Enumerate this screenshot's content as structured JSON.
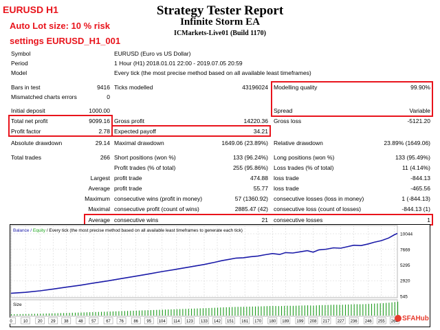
{
  "header": {
    "title": "Strategy Tester Report",
    "ea_name": "Infinite Storm EA",
    "server_build": "ICMarkets-Live01 (Build 1170)"
  },
  "overlay": {
    "symbol_tf": "EURUSD H1",
    "lot_size": "Auto Lot size: 10 % risk",
    "settings": "settings EURUSD_H1_001",
    "watermark": "SFAHub"
  },
  "info": [
    {
      "label": "Symbol",
      "value": "EURUSD (Euro vs US Dollar)"
    },
    {
      "label": "Period",
      "value": "1 Hour (H1) 2018.01.01 22:00 - 2019.07.05 20:59"
    },
    {
      "label": "Model",
      "value": "Every tick (the most precise method based on all available least timeframes)"
    }
  ],
  "stats": {
    "bars_in_test": {
      "label": "Bars in test",
      "value": "9416"
    },
    "ticks_modelled": {
      "label": "Ticks modelled",
      "value": "43196024"
    },
    "modelling_quality": {
      "label": "Modelling quality",
      "value": "99.90%"
    },
    "mismatched": {
      "label": "Mismatched charts errors",
      "value": "0"
    },
    "spread": {
      "label": "Spread",
      "value": "Variable"
    },
    "initial_deposit": {
      "label": "Initial deposit",
      "value": "1000.00"
    },
    "total_net_profit": {
      "label": "Total net profit",
      "value": "9099.16"
    },
    "gross_profit": {
      "label": "Gross profit",
      "value": "14220.36"
    },
    "gross_loss": {
      "label": "Gross loss",
      "value": "-5121.20"
    },
    "profit_factor": {
      "label": "Profit factor",
      "value": "2.78"
    },
    "expected_payoff": {
      "label": "Expected payoff",
      "value": "34.21"
    },
    "absolute_drawdown": {
      "label": "Absolute drawdown",
      "value": "29.14"
    },
    "maximal_drawdown": {
      "label": "Maximal drawdown",
      "value": "1649.06 (23.89%)"
    },
    "relative_drawdown": {
      "label": "Relative drawdown",
      "value": "23.89% (1649.06)"
    },
    "total_trades": {
      "label": "Total trades",
      "value": "266"
    },
    "short_positions": {
      "label": "Short positions (won %)",
      "value": "133 (96.24%)"
    },
    "long_positions": {
      "label": "Long positions (won %)",
      "value": "133 (95.49%)"
    },
    "profit_trades": {
      "label": "Profit trades (% of total)",
      "value": "255 (95.86%)"
    },
    "loss_trades": {
      "label": "Loss trades (% of total)",
      "value": "11 (4.14%)"
    },
    "largest": {
      "label": "Largest",
      "profit_label": "profit trade",
      "profit_value": "474.88",
      "loss_label": "loss trade",
      "loss_value": "-844.13"
    },
    "average": {
      "label": "Average",
      "profit_label": "profit trade",
      "profit_value": "55.77",
      "loss_label": "loss trade",
      "loss_value": "-465.56"
    },
    "maximum": {
      "label": "Maximum",
      "wins_label": "consecutive wins (profit in money)",
      "wins_value": "57 (1360.92)",
      "losses_label": "consecutive losses (loss in money)",
      "losses_value": "1 (-844.13)"
    },
    "maximal": {
      "label": "Maximal",
      "wins_label": "consecutive profit (count of wins)",
      "wins_value": "2885.47 (42)",
      "losses_label": "consecutive loss (count of losses)",
      "losses_value": "-844.13 (1)"
    },
    "average_consec": {
      "label": "Average",
      "wins_label": "consecutive wins",
      "wins_value": "21",
      "losses_label": "consecutive losses",
      "losses_value": "1"
    }
  },
  "chart_data": {
    "type": "line",
    "legend": {
      "balance": "Balance",
      "sep": " / ",
      "equity": "Equity",
      "desc": " / Every tick (the most precise method based on all available least timeframes to generate each tick)"
    },
    "size_label": "Size",
    "y_ticks": [
      "10044",
      "7669",
      "5295",
      "2920",
      "545"
    ],
    "ylim": [
      545,
      10044
    ],
    "x_ticks": [
      "0",
      "10",
      "20",
      "29",
      "38",
      "48",
      "57",
      "67",
      "76",
      "86",
      "95",
      "104",
      "114",
      "123",
      "133",
      "142",
      "151",
      "161",
      "170",
      "180",
      "189",
      "199",
      "208",
      "217",
      "227",
      "236",
      "246",
      "255",
      "264"
    ],
    "xlim": [
      0,
      266
    ],
    "series": [
      {
        "values_x": [
          0,
          10,
          20,
          29,
          38,
          48,
          57,
          67,
          76,
          86,
          95,
          104,
          114,
          123,
          133,
          140,
          145,
          150,
          155,
          160,
          165,
          170,
          175,
          180,
          185,
          189,
          194,
          199,
          204,
          208,
          212,
          217,
          222,
          227,
          232,
          236,
          241,
          246,
          250,
          255,
          260,
          264,
          266
        ],
        "values_y": [
          1000,
          1150,
          1380,
          1650,
          1930,
          2240,
          2560,
          2900,
          3240,
          3600,
          3950,
          4300,
          4660,
          5000,
          5380,
          5700,
          5950,
          6150,
          6350,
          6400,
          6560,
          6660,
          6860,
          7040,
          6900,
          7180,
          7120,
          7300,
          7480,
          7250,
          7600,
          7700,
          7900,
          7850,
          8100,
          8300,
          8250,
          8500,
          8750,
          9000,
          9400,
          9900,
          10100
        ]
      }
    ],
    "colors": {
      "balance": "#1a1aa8",
      "equity": "#19a319",
      "size_bars": "#1c9a1c",
      "grid": "#d6d6d6"
    }
  }
}
